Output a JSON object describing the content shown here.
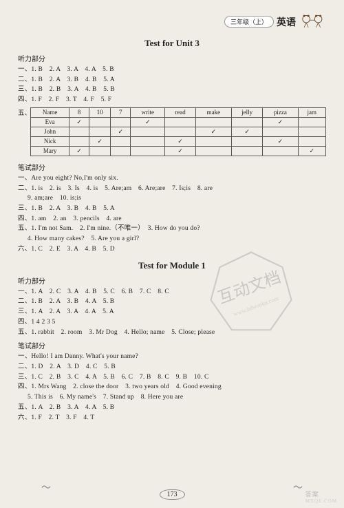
{
  "header": {
    "grade": "三年级（上）",
    "subject": "英语"
  },
  "unit3": {
    "title": "Test for Unit 3",
    "listening_label": "听力部分",
    "written_label": "笔试部分",
    "listening": {
      "r1": "一、1. B　2. A　3. A　4. A　5. B",
      "r2": "二、1. B　2. A　3. B　4. B　5. A",
      "r3": "三、1. B　2. B　3. A　4. B　5. B",
      "r4": "四、1. F　2. F　3. T　4. F　5. F",
      "r5_label": "五、",
      "table": {
        "headers": [
          "Name",
          "8",
          "10",
          "7",
          "write",
          "read",
          "make",
          "jelly",
          "pizza",
          "jam"
        ],
        "rows": [
          {
            "name": "Eva",
            "cells": [
              "✓",
              "",
              "",
              "✓",
              "",
              "",
              "",
              "✓",
              ""
            ]
          },
          {
            "name": "John",
            "cells": [
              "",
              "",
              "✓",
              "",
              "",
              "✓",
              "✓",
              "",
              ""
            ]
          },
          {
            "name": "Nick",
            "cells": [
              "",
              "✓",
              "",
              "",
              "✓",
              "",
              "",
              "✓",
              ""
            ]
          },
          {
            "name": "Mary",
            "cells": [
              "✓",
              "",
              "",
              "",
              "✓",
              "",
              "",
              "",
              "✓"
            ]
          }
        ]
      }
    },
    "written": {
      "r1": "一、Are you eight?  No,I'm only six.",
      "r2": "二、1. is　2. is　3. Is　4. is　5. Are;am　6. Are;are　7. Is;is　8. are",
      "r2b": "9. am;are　10. is;is",
      "r3": "三、1. B　2. A　3. B　4. B　5. A",
      "r4": "四、1. am　2. an　3. pencils　4. are",
      "r5": "五、1. I'm not Sam.　2. I'm nine.（不唯一）　3. How do you do?",
      "r5b": "4. How many cakes?　5. Are you a girl?",
      "r6": "六、1. C　2. E　3. A　4. B　5. D"
    }
  },
  "module1": {
    "title": "Test for Module 1",
    "listening_label": "听力部分",
    "written_label": "笔试部分",
    "listening": {
      "r1": "一、1. A　2. C　3. A　4. B　5. C　6. B　7. C　8. C",
      "r2": "二、1. B　2. A　3. B　4. A　5. B",
      "r3": "三、1. A　2. A　3. A　4. A　5. A",
      "r4": "四、1 4 2 3 5",
      "r5": "五、1. rabbit　2. room　3. Mr Dog　4. Hello; name　5. Close; please"
    },
    "written": {
      "r1": "一、Hello!  I am Danny. What's your name?",
      "r2": "二、1. D　2. A　3. D　4. C　5. B",
      "r3": "三、1. C　2. B　3. C　4. A　5. B　6. C　7. B　8. C　9. B　10. C",
      "r4": "四、1. Mrs Wang　2. close the door　3. two years old　4. Good evening",
      "r4b": "5. This is　6. My name's　7. Stand up　8. Here you are",
      "r5": "五、1. A　2. B　3. A　4. A　5. B",
      "r6": "六、1. F　2. T　3. F　4. T"
    }
  },
  "page_number": "173",
  "watermark_text": "互动文档",
  "watermark_url": "www.hdwenku.com",
  "site": {
    "name": "答案",
    "domain": "MXQE.COM"
  }
}
